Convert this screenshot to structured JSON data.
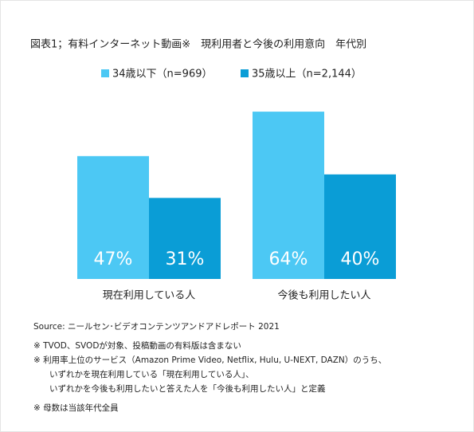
{
  "chart_data": {
    "type": "bar",
    "title": "図表1；有料インターネット動画※　現利用者と今後の利用意向　年代別",
    "categories": [
      "現在利用している人",
      "今後も利用したい人"
    ],
    "series": [
      {
        "name": "34歳以下（n=969）",
        "color": "#4cc8f4",
        "values": [
          47,
          64
        ],
        "value_labels": [
          "47%",
          "64%"
        ]
      },
      {
        "name": "35歳以上（n=2,144）",
        "color": "#0a9dd6",
        "values": [
          31,
          40
        ],
        "value_labels": [
          "31%",
          "40%"
        ]
      }
    ],
    "notes": [
      "Source: ニールセン･ビデオコンテンツアンドアドレポート 2021",
      "※ TVOD、SVODが対象、投稿動画の有料版は含まない",
      "※ 利用率上位のサービス（Amazon Prime Video, Netflix, Hulu, U-NEXT, DAZN）のうち、",
      "いずれかを現在利用している「現在利用している人」、",
      "いずれかを今後も利用したいと答えた人を「今後も利用したい人」と定義",
      "※ 母数は当該年代全員"
    ]
  }
}
